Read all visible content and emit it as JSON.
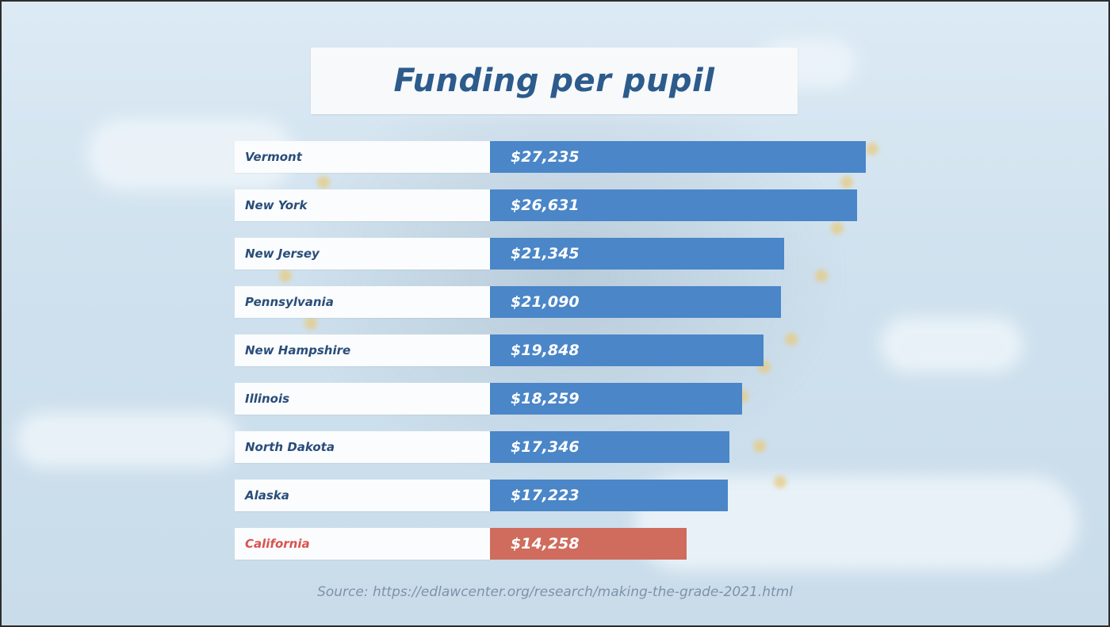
{
  "colors": {
    "bar_default": "#4a86c8",
    "bar_highlight": "#cf6c5d",
    "label_default": "#294d7a",
    "label_highlight": "#d9534f"
  },
  "chart_data": {
    "type": "bar",
    "orientation": "horizontal",
    "title": "Funding per pupil",
    "categories": [
      "Vermont",
      "New York",
      "New Jersey",
      "Pennsylvania",
      "New Hampshire",
      "Illinois",
      "North Dakota",
      "Alaska",
      "California"
    ],
    "values": [
      27235,
      26631,
      21345,
      21090,
      19848,
      18259,
      17346,
      17223,
      14258
    ],
    "value_labels": [
      "$27,235",
      "$26,631",
      "$21,345",
      "$21,090",
      "$19,848",
      "$18,259",
      "$17,346",
      "$17,223",
      "$14,258"
    ],
    "highlight": "California",
    "source": "Source: https://edlawcenter.org/research/making-the-grade-2021.html"
  }
}
